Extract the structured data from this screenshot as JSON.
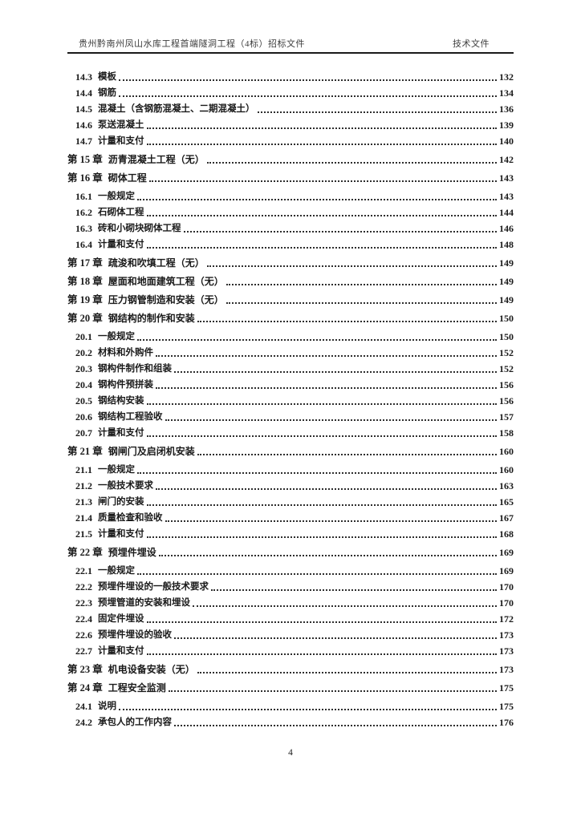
{
  "header": {
    "left": "贵州黔南州凤山水库工程首端隧洞工程（4标）招标文件",
    "right": "技术文件"
  },
  "toc": {
    "entries": [
      {
        "type": "sub",
        "num": "14.3",
        "title": "模板",
        "page": "132"
      },
      {
        "type": "sub",
        "num": "14.4",
        "title": "钢筋",
        "page": "134"
      },
      {
        "type": "sub",
        "num": "14.5",
        "title": "混凝土（含钢筋混凝土、二期混凝土）",
        "page": "136"
      },
      {
        "type": "sub",
        "num": "14.6",
        "title": "泵送混凝土",
        "page": "139"
      },
      {
        "type": "sub",
        "num": "14.7",
        "title": "计量和支付",
        "page": "140"
      },
      {
        "type": "chapter",
        "num": "第 15 章",
        "title": "沥青混凝土工程（无）",
        "page": "142"
      },
      {
        "type": "chapter",
        "num": "第 16 章",
        "title": "砌体工程",
        "page": "143"
      },
      {
        "type": "sub",
        "num": "16.1",
        "title": "一般规定",
        "page": "143"
      },
      {
        "type": "sub",
        "num": "16.2",
        "title": "石砌体工程",
        "page": "144"
      },
      {
        "type": "sub",
        "num": "16.3",
        "title": "砖和小砌块砌体工程",
        "page": "146"
      },
      {
        "type": "sub",
        "num": "16.4",
        "title": "计量和支付",
        "page": "148"
      },
      {
        "type": "chapter",
        "num": "第 17 章",
        "title": "疏浚和吹填工程（无）",
        "page": "149"
      },
      {
        "type": "chapter",
        "num": "第 18 章",
        "title": "屋面和地面建筑工程（无）",
        "page": "149"
      },
      {
        "type": "chapter",
        "num": "第 19 章",
        "title": "压力钢管制造和安装（无）",
        "page": "149"
      },
      {
        "type": "chapter",
        "num": "第 20 章",
        "title": "钢结构的制作和安装",
        "page": "150"
      },
      {
        "type": "sub",
        "num": "20.1",
        "title": "一般规定",
        "page": "150"
      },
      {
        "type": "sub",
        "num": "20.2",
        "title": "材料和外购件",
        "page": "152"
      },
      {
        "type": "sub",
        "num": "20.3",
        "title": "钢构件制作和组装",
        "page": "152"
      },
      {
        "type": "sub",
        "num": "20.4",
        "title": "钢构件预拼装",
        "page": "156"
      },
      {
        "type": "sub",
        "num": "20.5",
        "title": "钢结构安装",
        "page": "156"
      },
      {
        "type": "sub",
        "num": "20.6",
        "title": "钢结构工程验收",
        "page": "157"
      },
      {
        "type": "sub",
        "num": "20.7",
        "title": "计量和支付",
        "page": "158"
      },
      {
        "type": "chapter",
        "num": "第 21 章",
        "title": "钢闸门及启闭机安装",
        "page": "160"
      },
      {
        "type": "sub",
        "num": "21.1",
        "title": "一般规定",
        "page": "160"
      },
      {
        "type": "sub",
        "num": "21.2",
        "title": "一般技术要求",
        "page": "163"
      },
      {
        "type": "sub",
        "num": "21.3",
        "title": "闸门的安装",
        "page": "165"
      },
      {
        "type": "sub",
        "num": "21.4",
        "title": "质量检查和验收",
        "page": "167"
      },
      {
        "type": "sub",
        "num": "21.5",
        "title": "计量和支付",
        "page": "168"
      },
      {
        "type": "chapter",
        "num": "第 22 章",
        "title": "预埋件埋设",
        "page": "169"
      },
      {
        "type": "sub",
        "num": "22.1",
        "title": "一般规定",
        "page": "169"
      },
      {
        "type": "sub",
        "num": "22.2",
        "title": "预埋件埋设的一般技术要求",
        "page": "170"
      },
      {
        "type": "sub",
        "num": "22.3",
        "title": "预埋管道的安装和埋设",
        "page": "170"
      },
      {
        "type": "sub",
        "num": "22.4",
        "title": "固定件埋设",
        "page": "172"
      },
      {
        "type": "sub",
        "num": "22.6",
        "title": "预埋件埋设的验收",
        "page": "173"
      },
      {
        "type": "sub",
        "num": "22.7",
        "title": "计量和支付",
        "page": "173"
      },
      {
        "type": "chapter",
        "num": "第 23 章",
        "title": "机电设备安装（无）",
        "page": "173"
      },
      {
        "type": "chapter",
        "num": "第 24 章",
        "title": "工程安全监测",
        "page": "175"
      },
      {
        "type": "sub",
        "num": "24.1",
        "title": "说明",
        "page": "175"
      },
      {
        "type": "sub",
        "num": "24.2",
        "title": "承包人的工作内容",
        "page": "176"
      }
    ]
  },
  "footer": {
    "page_number": "4"
  }
}
